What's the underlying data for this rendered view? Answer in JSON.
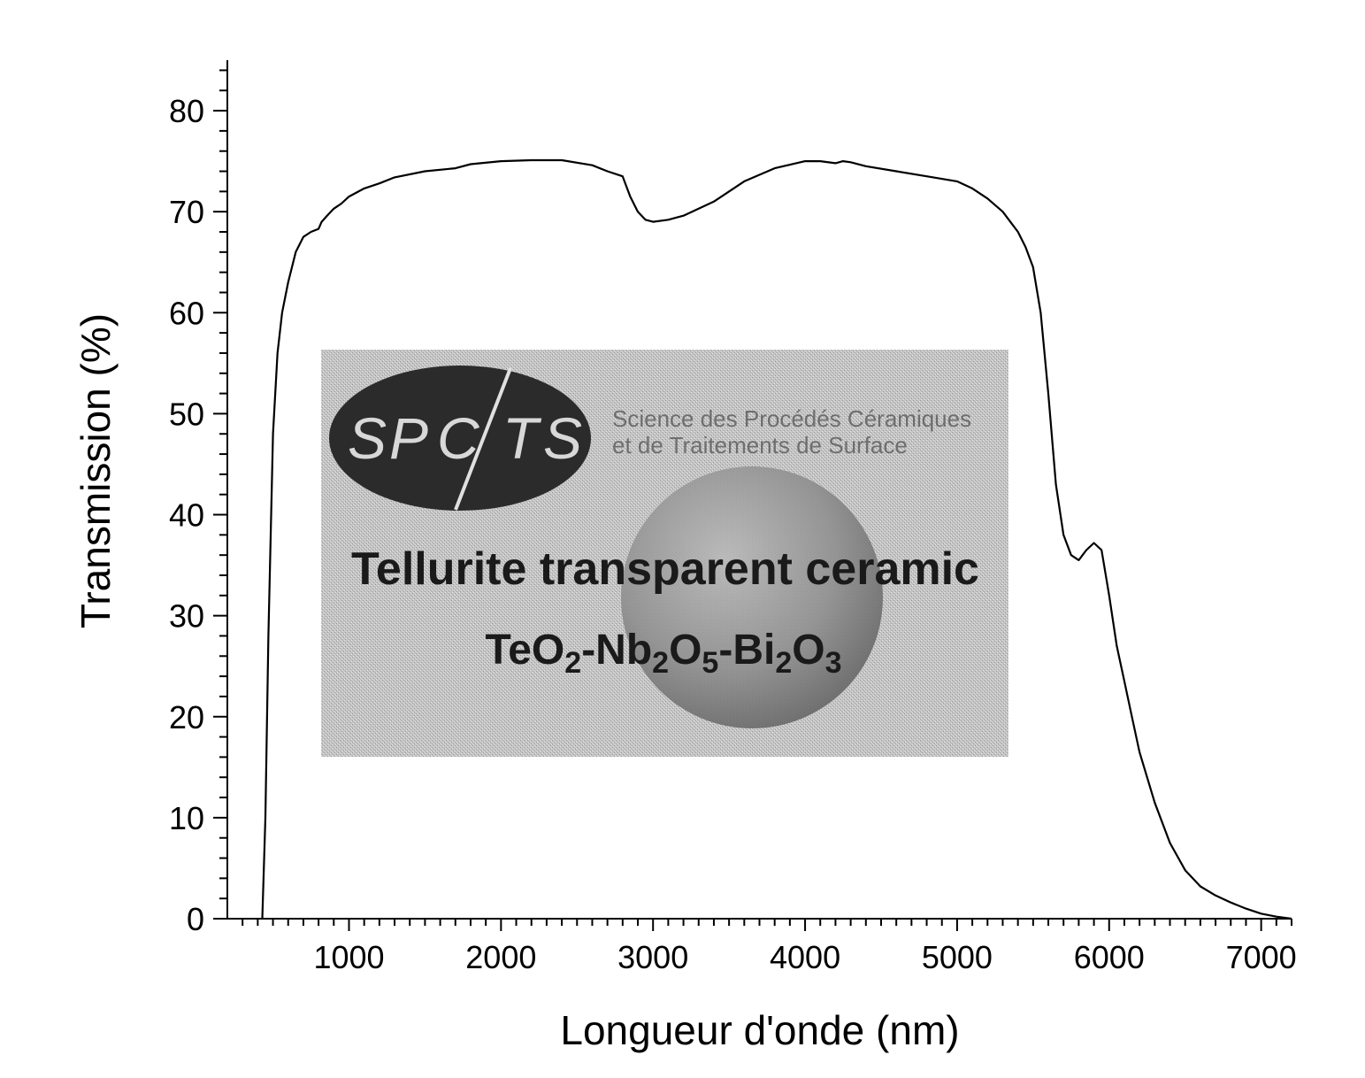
{
  "chart_data": {
    "type": "line",
    "title": "",
    "xlabel": "Longueur d'onde (nm)",
    "ylabel": "Transmission (%)",
    "xlim": [
      200,
      7200
    ],
    "ylim": [
      0,
      85
    ],
    "x_ticks": [
      1000,
      2000,
      3000,
      4000,
      5000,
      6000,
      7000
    ],
    "x_tick_labels": [
      "1000",
      "2000",
      "3000",
      "4000",
      "5000",
      "6000",
      "7000"
    ],
    "y_ticks": [
      0,
      10,
      20,
      30,
      40,
      50,
      60,
      70,
      80
    ],
    "y_tick_labels": [
      "0",
      "10",
      "20",
      "30",
      "40",
      "50",
      "60",
      "70",
      "80"
    ],
    "grid": false,
    "series": [
      {
        "color": "#000000",
        "x": [
          430,
          450,
          470,
          500,
          530,
          560,
          600,
          650,
          700,
          750,
          800,
          820,
          850,
          900,
          950,
          1000,
          1100,
          1200,
          1300,
          1500,
          1700,
          1800,
          2000,
          2200,
          2400,
          2600,
          2700,
          2800,
          2850,
          2900,
          2950,
          3000,
          3100,
          3200,
          3400,
          3600,
          3800,
          4000,
          4100,
          4200,
          4250,
          4300,
          4400,
          4600,
          4800,
          5000,
          5100,
          5200,
          5300,
          5400,
          5450,
          5500,
          5550,
          5600,
          5650,
          5700,
          5750,
          5800,
          5850,
          5900,
          5950,
          6000,
          6050,
          6100,
          6150,
          6200,
          6300,
          6400,
          6500,
          6600,
          6700,
          6800,
          6900,
          7000,
          7100,
          7200
        ],
        "y": [
          0,
          10,
          28,
          48,
          56,
          60,
          63,
          66,
          67.5,
          68,
          68.3,
          69,
          69.5,
          70.3,
          70.8,
          71.5,
          72.3,
          72.8,
          73.4,
          74.0,
          74.3,
          74.7,
          75.0,
          75.1,
          75.1,
          74.6,
          74.0,
          73.5,
          71.5,
          70.0,
          69.2,
          69.0,
          69.2,
          69.6,
          71.0,
          73.0,
          74.3,
          75.0,
          75.0,
          74.8,
          75.0,
          74.9,
          74.5,
          74.0,
          73.5,
          73.0,
          72.3,
          71.3,
          70.0,
          68.0,
          66.5,
          64.5,
          60.0,
          52.0,
          43.0,
          38.0,
          36.0,
          35.5,
          36.5,
          37.2,
          36.5,
          32.0,
          27.0,
          23.5,
          20.0,
          16.5,
          11.5,
          7.5,
          4.8,
          3.2,
          2.3,
          1.6,
          1.0,
          0.5,
          0.2,
          0
        ]
      }
    ],
    "inset": {
      "logo_letters": [
        "S",
        "P",
        "C",
        "T",
        "S"
      ],
      "org_line1": "Science des Procédés Céramiques",
      "org_line2": "et de Traitements de Surface",
      "heading": "Tellurite transparent ceramic",
      "formula_parts": [
        {
          "t": "TeO",
          "sub": false
        },
        {
          "t": "2",
          "sub": true
        },
        {
          "t": "-Nb",
          "sub": false
        },
        {
          "t": "2",
          "sub": true
        },
        {
          "t": "O",
          "sub": false
        },
        {
          "t": "5",
          "sub": true
        },
        {
          "t": "-Bi",
          "sub": false
        },
        {
          "t": "2",
          "sub": true
        },
        {
          "t": "O",
          "sub": false
        },
        {
          "t": "3",
          "sub": true
        }
      ]
    }
  }
}
